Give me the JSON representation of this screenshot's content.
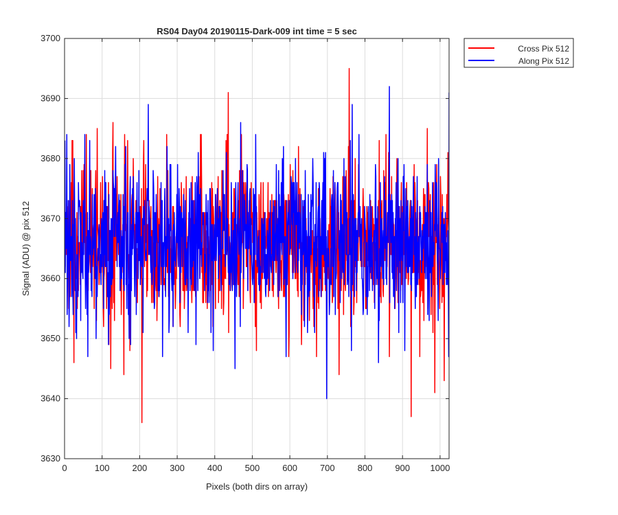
{
  "chart_data": {
    "type": "line",
    "title": "RS04 Day04 20190115-Dark-009 int time = 5 sec",
    "xlabel": "Pixels (both dirs on array)",
    "ylabel": "Signal (ADU) @ pix 512",
    "xlim": [
      0,
      1024
    ],
    "ylim": [
      3630,
      3700
    ],
    "xticks": [
      0,
      100,
      200,
      300,
      400,
      500,
      600,
      700,
      800,
      900,
      1000
    ],
    "yticks": [
      3630,
      3640,
      3650,
      3660,
      3670,
      3680,
      3690,
      3700
    ],
    "grid": true,
    "legend_position": "outside-top-right",
    "noise": {
      "mean": 3666,
      "std": 6.5,
      "count": 1024
    },
    "series": [
      {
        "name": "Cross Pix 512",
        "color": "#ff0000",
        "extremes": [
          {
            "x": 205,
            "y": 3636
          },
          {
            "x": 435,
            "y": 3691
          },
          {
            "x": 757,
            "y": 3695
          },
          {
            "x": 922,
            "y": 3637
          },
          {
            "x": 985,
            "y": 3641
          },
          {
            "x": 1010,
            "y": 3643
          },
          {
            "x": 24,
            "y": 3646
          },
          {
            "x": 57,
            "y": 3684
          },
          {
            "x": 86,
            "y": 3685
          },
          {
            "x": 122,
            "y": 3645
          },
          {
            "x": 128,
            "y": 3686
          },
          {
            "x": 157,
            "y": 3644
          },
          {
            "x": 167,
            "y": 3683
          },
          {
            "x": 210,
            "y": 3683
          },
          {
            "x": 470,
            "y": 3684
          },
          {
            "x": 510,
            "y": 3648
          },
          {
            "x": 730,
            "y": 3644
          },
          {
            "x": 855,
            "y": 3684
          },
          {
            "x": 945,
            "y": 3647
          },
          {
            "x": 965,
            "y": 3685
          }
        ]
      },
      {
        "name": "Along Pix 512",
        "color": "#0000ff",
        "extremes": [
          {
            "x": 5,
            "y": 3684
          },
          {
            "x": 222,
            "y": 3689
          },
          {
            "x": 697,
            "y": 3640
          },
          {
            "x": 765,
            "y": 3689
          },
          {
            "x": 835,
            "y": 3646
          },
          {
            "x": 864,
            "y": 3692
          },
          {
            "x": 1023,
            "y": 3691
          },
          {
            "x": 453,
            "y": 3645
          },
          {
            "x": 468,
            "y": 3686
          },
          {
            "x": 260,
            "y": 3647
          },
          {
            "x": 162,
            "y": 3682
          },
          {
            "x": 582,
            "y": 3682
          },
          {
            "x": 640,
            "y": 3678
          },
          {
            "x": 905,
            "y": 3648
          },
          {
            "x": 355,
            "y": 3681
          }
        ]
      }
    ]
  }
}
